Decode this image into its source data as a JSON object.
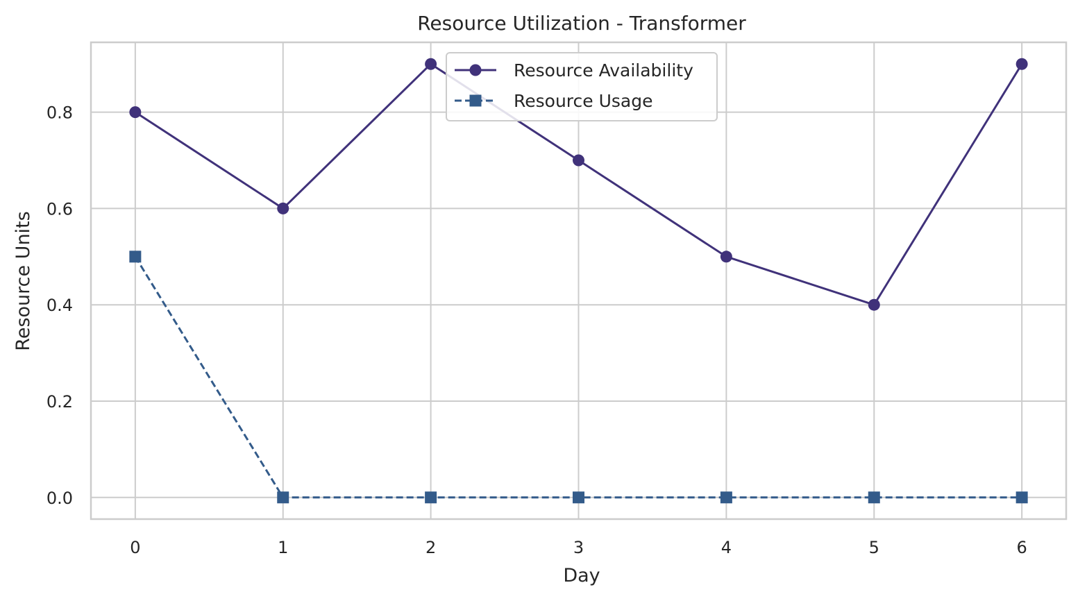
{
  "chart_data": {
    "type": "line",
    "title": "Resource Utilization - Transformer",
    "xlabel": "Day",
    "ylabel": "Resource Units",
    "x": [
      0,
      1,
      2,
      3,
      4,
      5,
      6
    ],
    "xlim": [
      -0.3,
      6.3
    ],
    "ylim": [
      -0.045,
      0.945
    ],
    "xticks": [
      "0",
      "1",
      "2",
      "3",
      "4",
      "5",
      "6"
    ],
    "yticks": [
      "0.0",
      "0.2",
      "0.4",
      "0.6",
      "0.8"
    ],
    "ytick_values": [
      0.0,
      0.2,
      0.4,
      0.6,
      0.8
    ],
    "grid": true,
    "legend_position": "top-center",
    "series": [
      {
        "name": "Resource Availability",
        "values": [
          0.8,
          0.6,
          0.9,
          0.7,
          0.5,
          0.4,
          0.9
        ],
        "color": "#40327a",
        "marker": "circle",
        "linestyle": "solid"
      },
      {
        "name": "Resource Usage",
        "values": [
          0.5,
          0.0,
          0.0,
          0.0,
          0.0,
          0.0,
          0.0
        ],
        "color": "#335b8a",
        "marker": "square",
        "linestyle": "dashed"
      }
    ]
  }
}
